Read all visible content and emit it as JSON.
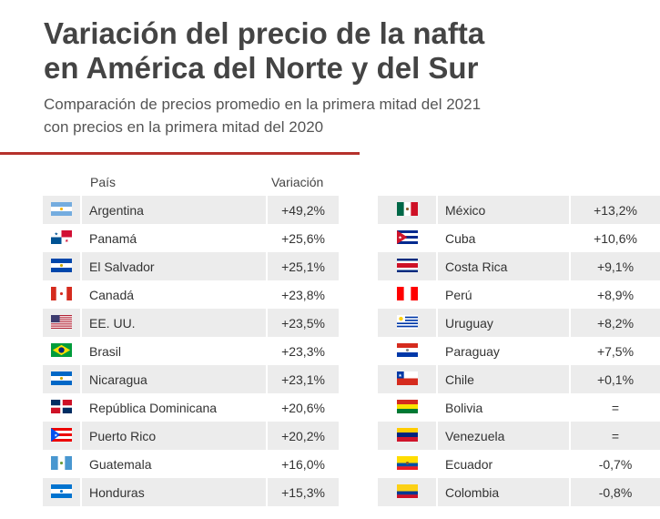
{
  "title_line1": "Variación del precio de la nafta",
  "title_line2": "en América del Norte y del Sur",
  "subtitle_line1": "Comparación de precios promedio en la primera mitad del 2021",
  "subtitle_line2": "con precios en la primera mitad del 2020",
  "accent_color": "#b5312c",
  "chart_data": {
    "type": "table",
    "columns": [
      "País",
      "Variación"
    ],
    "left": [
      {
        "flag": "flag-argentina",
        "country": "Argentina",
        "value": "+49,2%"
      },
      {
        "flag": "flag-panama",
        "country": "Panamá",
        "value": "+25,6%"
      },
      {
        "flag": "flag-el-salvador",
        "country": "El Salvador",
        "value": "+25,1%"
      },
      {
        "flag": "flag-canada",
        "country": "Canadá",
        "value": "+23,8%"
      },
      {
        "flag": "flag-usa",
        "country": "EE. UU.",
        "value": "+23,5%"
      },
      {
        "flag": "flag-brazil",
        "country": "Brasil",
        "value": "+23,3%"
      },
      {
        "flag": "flag-nicaragua",
        "country": "Nicaragua",
        "value": "+23,1%"
      },
      {
        "flag": "flag-dominican-republic",
        "country": "República Dominicana",
        "value": "+20,6%"
      },
      {
        "flag": "flag-puerto-rico",
        "country": "Puerto Rico",
        "value": "+20,2%"
      },
      {
        "flag": "flag-guatemala",
        "country": "Guatemala",
        "value": "+16,0%"
      },
      {
        "flag": "flag-honduras",
        "country": "Honduras",
        "value": "+15,3%"
      }
    ],
    "right": [
      {
        "flag": "flag-mexico",
        "country": "México",
        "value": "+13,2%"
      },
      {
        "flag": "flag-cuba",
        "country": "Cuba",
        "value": "+10,6%"
      },
      {
        "flag": "flag-costa-rica",
        "country": "Costa Rica",
        "value": "+9,1%"
      },
      {
        "flag": "flag-peru",
        "country": "Perú",
        "value": "+8,9%"
      },
      {
        "flag": "flag-uruguay",
        "country": "Uruguay",
        "value": "+8,2%"
      },
      {
        "flag": "flag-paraguay",
        "country": "Paraguay",
        "value": "+7,5%"
      },
      {
        "flag": "flag-chile",
        "country": "Chile",
        "value": "+0,1%"
      },
      {
        "flag": "flag-bolivia",
        "country": "Bolivia",
        "value": "="
      },
      {
        "flag": "flag-venezuela",
        "country": "Venezuela",
        "value": "="
      },
      {
        "flag": "flag-ecuador",
        "country": "Ecuador",
        "value": "-0,7%"
      },
      {
        "flag": "flag-colombia",
        "country": "Colombia",
        "value": "-0,8%"
      }
    ]
  }
}
